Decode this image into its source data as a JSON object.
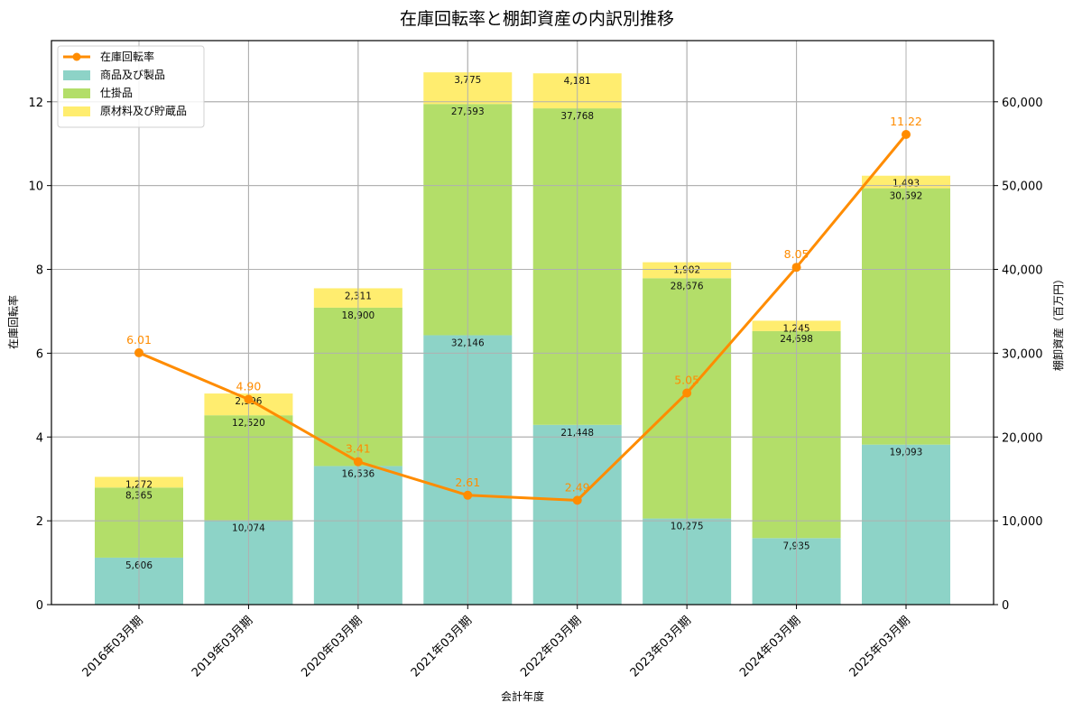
{
  "chart_data": {
    "type": "bar",
    "subtype": "stacked bar + line (dual axis)",
    "title": "在庫回転率と棚卸資産の内訳別推移",
    "xlabel": "会計年度",
    "ylabel_left": "在庫回転率",
    "ylabel_right": "棚卸資産（百万円）",
    "categories": [
      "2016年03月期",
      "2019年03月期",
      "2020年03月期",
      "2021年03月期",
      "2022年03月期",
      "2023年03月期",
      "2024年03月期",
      "2025年03月期"
    ],
    "series": [
      {
        "name": "商品及び製品",
        "axis": "right",
        "kind": "bar",
        "color": "#8dd3c7",
        "values": [
          5606,
          10074,
          16536,
          32146,
          21448,
          10275,
          7935,
          19093
        ],
        "labels": [
          "5,606",
          "10,074",
          "16,536",
          "32,146",
          "21,448",
          "10,275",
          "7,935",
          "19,093"
        ]
      },
      {
        "name": "仕掛品",
        "axis": "right",
        "kind": "bar",
        "color": "#b3de69",
        "values": [
          8365,
          12520,
          18900,
          27593,
          37768,
          28676,
          24698,
          30592
        ],
        "labels": [
          "8,365",
          "12,520",
          "18,900",
          "27,593",
          "37,768",
          "28,676",
          "24,698",
          "30,592"
        ]
      },
      {
        "name": "原材料及び貯蔵品",
        "axis": "right",
        "kind": "bar",
        "color": "#ffed6f",
        "values": [
          1272,
          2596,
          2311,
          3775,
          4181,
          1902,
          1245,
          1493
        ],
        "labels": [
          "1,272",
          "2,596",
          "2,311",
          "3,775",
          "4,181",
          "1,902",
          "1,245",
          "1,493"
        ]
      },
      {
        "name": "在庫回転率",
        "axis": "left",
        "kind": "line",
        "color": "#ff8c00",
        "values": [
          6.01,
          4.9,
          3.41,
          2.61,
          2.49,
          5.05,
          8.05,
          11.22
        ],
        "labels": [
          "6.01",
          "4.90",
          "3.41",
          "2.61",
          "2.49",
          "5.05",
          "8.05",
          "11.22"
        ]
      }
    ],
    "ylim_left": [
      0,
      13.46
    ],
    "ylim_right": [
      0,
      67300
    ],
    "yticks_left": [
      "0",
      "2",
      "4",
      "6",
      "8",
      "10",
      "12"
    ],
    "yticks_right": [
      "0",
      "10,000",
      "20,000",
      "30,000",
      "40,000",
      "50,000",
      "60,000"
    ],
    "grid": true,
    "legend_position": "upper left",
    "legend": [
      "在庫回転率",
      "商品及び製品",
      "仕掛品",
      "原材料及び貯蔵品"
    ]
  }
}
